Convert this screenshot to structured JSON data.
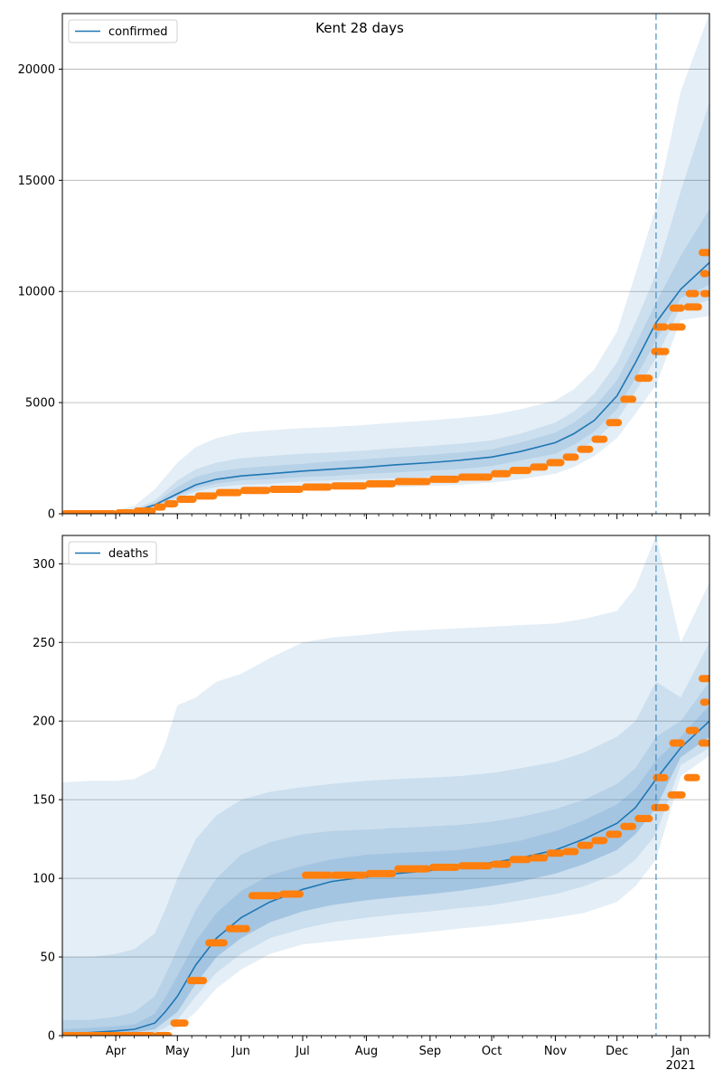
{
  "figure": {
    "title": "Kent 28 days"
  },
  "colors": {
    "model_line": "#1f77b4",
    "band": "#1f77b4",
    "observed": "#ff7f0e",
    "grid": "#b0b0b0",
    "axis": "#000000"
  },
  "x_axis": {
    "tick_labels": [
      "Apr",
      "May",
      "Jun",
      "Jul",
      "Aug",
      "Sep",
      "Oct",
      "Nov",
      "Dec",
      "Jan"
    ],
    "year_label": "2021"
  },
  "chart_data": [
    {
      "type": "line",
      "legend": "confirmed",
      "legend_position": "top-left",
      "grid": "horizontal",
      "x_range": [
        "2020-03-06",
        "2021-01-15"
      ],
      "ylim": [
        0,
        22500
      ],
      "yticks": [
        0,
        5000,
        10000,
        15000,
        20000
      ],
      "forecast_start": "2020-12-20",
      "model": {
        "x": [
          "2020-03-06",
          "2020-03-20",
          "2020-04-01",
          "2020-04-10",
          "2020-04-20",
          "2020-05-01",
          "2020-05-10",
          "2020-05-20",
          "2020-06-01",
          "2020-06-15",
          "2020-07-01",
          "2020-07-15",
          "2020-08-01",
          "2020-08-15",
          "2020-09-01",
          "2020-09-15",
          "2020-10-01",
          "2020-10-15",
          "2020-11-01",
          "2020-11-10",
          "2020-11-20",
          "2020-12-01",
          "2020-12-10",
          "2020-12-20",
          "2021-01-01",
          "2021-01-15"
        ],
        "median": [
          0,
          10,
          50,
          120,
          400,
          900,
          1300,
          1550,
          1700,
          1800,
          1920,
          2000,
          2100,
          2200,
          2300,
          2400,
          2550,
          2800,
          3200,
          3600,
          4200,
          5300,
          6800,
          8600,
          10100,
          11300
        ],
        "bands": [
          {
            "lower": [
              0,
              0,
              0,
              30,
              200,
              500,
              700,
              850,
              950,
              1000,
              1050,
              1100,
              1150,
              1200,
              1250,
              1300,
              1400,
              1550,
              1800,
              2100,
              2600,
              3400,
              4500,
              5800,
              8700,
              8900
            ],
            "upper": [
              50,
              60,
              150,
              350,
              1100,
              2300,
              3000,
              3400,
              3650,
              3750,
              3850,
              3900,
              4000,
              4100,
              4200,
              4300,
              4450,
              4700,
              5100,
              5600,
              6500,
              8200,
              10800,
              13800,
              19000,
              22500
            ]
          },
          {
            "lower": [
              0,
              0,
              10,
              60,
              300,
              700,
              1000,
              1200,
              1300,
              1350,
              1450,
              1500,
              1550,
              1600,
              1650,
              1700,
              1800,
              2000,
              2300,
              2700,
              3300,
              4200,
              5500,
              7000,
              9300,
              9600
            ]
          },
          {
            "lower": [
              0,
              0,
              20,
              80,
              350,
              800,
              1150,
              1350,
              1500,
              1550,
              1650,
              1700,
              1800,
              1850,
              1950,
              2000,
              2150,
              2400,
              2700,
              3100,
              3700,
              4700,
              6100,
              7800,
              9700,
              10300
            ]
          }
        ]
      },
      "band_uppers": [
        [
          20,
          30,
          90,
          200,
          600,
          1500,
          2000,
          2300,
          2500,
          2600,
          2700,
          2750,
          2850,
          2950,
          3050,
          3150,
          3300,
          3600,
          4100,
          4600,
          5400,
          6800,
          8600,
          10800,
          14500,
          18500
        ],
        [
          10,
          20,
          70,
          160,
          480,
          1200,
          1650,
          1900,
          2050,
          2150,
          2250,
          2350,
          2450,
          2550,
          2650,
          2750,
          2900,
          3200,
          3650,
          4100,
          4800,
          6000,
          7600,
          9500,
          11600,
          13700
        ]
      ],
      "observed": {
        "x": [
          "2020-03-06",
          "2020-04-01",
          "2020-04-10",
          "2020-04-20",
          "2020-04-25",
          "2020-05-01",
          "2020-05-10",
          "2020-05-20",
          "2020-06-01",
          "2020-06-15",
          "2020-07-01",
          "2020-07-15",
          "2020-08-01",
          "2020-08-15",
          "2020-09-01",
          "2020-09-15",
          "2020-10-01",
          "2020-10-10",
          "2020-10-20",
          "2020-10-28",
          "2020-11-05",
          "2020-11-12",
          "2020-11-19",
          "2020-11-26",
          "2020-12-03",
          "2020-12-10",
          "2020-12-18",
          "2020-12-26",
          "2021-01-03",
          "2021-01-11",
          "2021-01-15"
        ],
        "y": [
          0,
          40,
          120,
          300,
          450,
          650,
          800,
          950,
          1050,
          1100,
          1200,
          1250,
          1350,
          1450,
          1550,
          1650,
          1800,
          1950,
          2100,
          2300,
          2550,
          2900,
          3350,
          4100,
          5150,
          6100,
          7300,
          8400,
          9300,
          9900,
          10800
        ]
      },
      "observed_steps": {
        "x": [
          "2020-12-18",
          "2020-12-26",
          "2021-01-03",
          "2021-01-10",
          "2021-01-15"
        ],
        "y": [
          8400,
          9250,
          9900,
          10800,
          11750
        ]
      }
    },
    {
      "type": "line",
      "legend": "deaths",
      "legend_position": "top-left",
      "grid": "horizontal",
      "x_range": [
        "2020-03-06",
        "2021-01-15"
      ],
      "ylim": [
        0,
        318
      ],
      "yticks": [
        0,
        50,
        100,
        150,
        200,
        250,
        300
      ],
      "forecast_start": "2020-12-20",
      "model": {
        "x": [
          "2020-03-06",
          "2020-03-20",
          "2020-04-01",
          "2020-04-10",
          "2020-04-20",
          "2020-04-25",
          "2020-05-01",
          "2020-05-10",
          "2020-05-20",
          "2020-06-01",
          "2020-06-15",
          "2020-07-01",
          "2020-07-15",
          "2020-08-01",
          "2020-08-15",
          "2020-09-01",
          "2020-09-15",
          "2020-10-01",
          "2020-10-15",
          "2020-11-01",
          "2020-11-15",
          "2020-12-01",
          "2020-12-10",
          "2020-12-20",
          "2021-01-01",
          "2021-01-15"
        ],
        "median": [
          1,
          2,
          3,
          4,
          8,
          15,
          25,
          45,
          62,
          75,
          85,
          93,
          98,
          101,
          103,
          105,
          107,
          110,
          113,
          118,
          125,
          135,
          145,
          163,
          183,
          200
        ],
        "bands": [
          {
            "lower": [
              0,
              0,
              0,
              0,
              1,
              2,
              5,
              15,
              30,
              42,
              52,
              58,
              60,
              62,
              64,
              66,
              68,
              70,
              72,
              75,
              78,
              85,
              95,
              112,
              165,
              178
            ],
            "upper": [
              161,
              162,
              162,
              163,
              170,
              185,
              210,
              215,
              225,
              230,
              240,
              250,
              253,
              255,
              257,
              258,
              259,
              260,
              261,
              262,
              265,
              270,
              285,
              318,
              250,
              288
            ]
          },
          {
            "lower": [
              0,
              0,
              1,
              1,
              2,
              5,
              10,
              25,
              40,
              52,
              62,
              68,
              72,
              75,
              77,
              79,
              81,
              83,
              86,
              90,
              95,
              103,
              112,
              128,
              172,
              183
            ]
          },
          {
            "lower": [
              0,
              1,
              2,
              2,
              4,
              9,
              15,
              33,
              50,
              62,
              72,
              79,
              83,
              86,
              88,
              90,
              92,
              95,
              98,
              103,
              109,
              118,
              128,
              145,
              177,
              190
            ]
          }
        ]
      },
      "band_uppers": [
        [
          50,
          50,
          52,
          55,
          65,
          80,
          100,
          125,
          140,
          150,
          155,
          158,
          160,
          162,
          163,
          164,
          165,
          167,
          170,
          174,
          180,
          190,
          200,
          225,
          215,
          250
        ],
        [
          10,
          10,
          12,
          15,
          25,
          38,
          55,
          80,
          100,
          115,
          123,
          128,
          130,
          131,
          132,
          133,
          134,
          136,
          139,
          144,
          150,
          160,
          170,
          190,
          200,
          225
        ],
        [
          4,
          5,
          6,
          7,
          14,
          24,
          38,
          60,
          78,
          92,
          102,
          108,
          112,
          115,
          116,
          117,
          118,
          121,
          124,
          130,
          137,
          147,
          157,
          175,
          190,
          210
        ]
      ],
      "observed": {
        "x": [
          "2020-03-06",
          "2020-04-20",
          "2020-04-28",
          "2020-05-06",
          "2020-05-15",
          "2020-05-25",
          "2020-06-05",
          "2020-06-20",
          "2020-07-01",
          "2020-07-15",
          "2020-08-01",
          "2020-08-15",
          "2020-09-01",
          "2020-09-15",
          "2020-10-01",
          "2020-10-10",
          "2020-10-20",
          "2020-10-28",
          "2020-11-05",
          "2020-11-12",
          "2020-11-19",
          "2020-11-26",
          "2020-12-03",
          "2020-12-10",
          "2020-12-18",
          "2020-12-26",
          "2021-01-03",
          "2021-01-10",
          "2021-01-15"
        ],
        "y": [
          0,
          0,
          8,
          35,
          59,
          68,
          89,
          90,
          102,
          102,
          103,
          106,
          107,
          108,
          109,
          112,
          113,
          116,
          117,
          121,
          124,
          128,
          133,
          138,
          145,
          153,
          164,
          186,
          194
        ]
      },
      "observed_steps": {
        "x": [
          "2020-12-18",
          "2020-12-26",
          "2021-01-03",
          "2021-01-10",
          "2021-01-15"
        ],
        "y": [
          164,
          186,
          194,
          212,
          227
        ]
      }
    }
  ]
}
